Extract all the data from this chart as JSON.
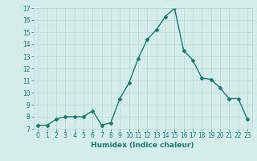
{
  "x": [
    0,
    1,
    2,
    3,
    4,
    5,
    6,
    7,
    8,
    9,
    10,
    11,
    12,
    13,
    14,
    15,
    16,
    17,
    18,
    19,
    20,
    21,
    22,
    23
  ],
  "y": [
    7.3,
    7.3,
    7.8,
    8.0,
    8.0,
    8.0,
    8.5,
    7.3,
    7.5,
    9.5,
    10.8,
    12.8,
    14.4,
    15.2,
    16.3,
    17.0,
    13.5,
    12.7,
    11.2,
    11.1,
    10.4,
    9.5,
    9.5,
    7.8
  ],
  "line_color": "#1a7a6e",
  "marker": "D",
  "marker_size": 2.0,
  "linewidth": 1.0,
  "xlabel": "Humidex (Indice chaleur)",
  "ylim": [
    7,
    17
  ],
  "xlim": [
    -0.5,
    23.5
  ],
  "yticks": [
    7,
    8,
    9,
    10,
    11,
    12,
    13,
    14,
    15,
    16,
    17
  ],
  "xticks": [
    0,
    1,
    2,
    3,
    4,
    5,
    6,
    7,
    8,
    9,
    10,
    11,
    12,
    13,
    14,
    15,
    16,
    17,
    18,
    19,
    20,
    21,
    22,
    23
  ],
  "bg_color": "#d4edea",
  "grid_color": "#b8d8d4",
  "tick_fontsize": 5.5,
  "xlabel_fontsize": 6.5
}
